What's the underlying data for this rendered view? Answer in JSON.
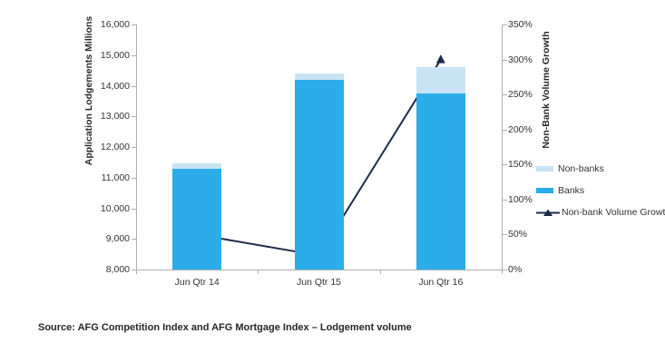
{
  "chart_data": {
    "type": "bar",
    "subtype": "stacked-bars-with-line",
    "categories": [
      "Jun Qtr 14",
      "Jun Qtr 15",
      "Jun Qtr 16"
    ],
    "series": [
      {
        "name": "Banks",
        "type": "bar",
        "color": "#2aade8",
        "axis": "left",
        "values": [
          11300,
          14200,
          13750
        ]
      },
      {
        "name": "Non-banks",
        "type": "bar",
        "color": "#c8e4f4",
        "axis": "left",
        "values": [
          180,
          200,
          850
        ]
      },
      {
        "name": "Non-bank Volume Growth",
        "type": "line",
        "color": "#1c2b4a",
        "marker": "triangle",
        "axis": "right",
        "values": [
          50,
          20,
          300
        ]
      }
    ],
    "left_axis": {
      "title": "Application Lodgements Millions",
      "min": 8000,
      "max": 16000,
      "step": 1000,
      "tick_labels": [
        "8,000",
        "9,000",
        "10,000",
        "11,000",
        "12,000",
        "13,000",
        "14,000",
        "15,000",
        "16,000"
      ]
    },
    "right_axis": {
      "title": "Non-Bank Volume Growth",
      "min": 0,
      "max": 350,
      "step": 50,
      "tick_labels": [
        "0%",
        "50%",
        "100%",
        "150%",
        "200%",
        "250%",
        "300%",
        "350%"
      ]
    },
    "legend": {
      "position": "right",
      "items": [
        {
          "label": "Non-banks",
          "swatch": "rect",
          "color": "#c8e4f4"
        },
        {
          "label": "Banks",
          "swatch": "rect",
          "color": "#2aade8"
        },
        {
          "label": "Non-bank Volume Growth",
          "swatch": "line-triangle",
          "color": "#1c2b4a"
        }
      ]
    },
    "grid": "off"
  },
  "source_note": "Source: AFG Competition Index and AFG Mortgage Index – Lodgement volume"
}
